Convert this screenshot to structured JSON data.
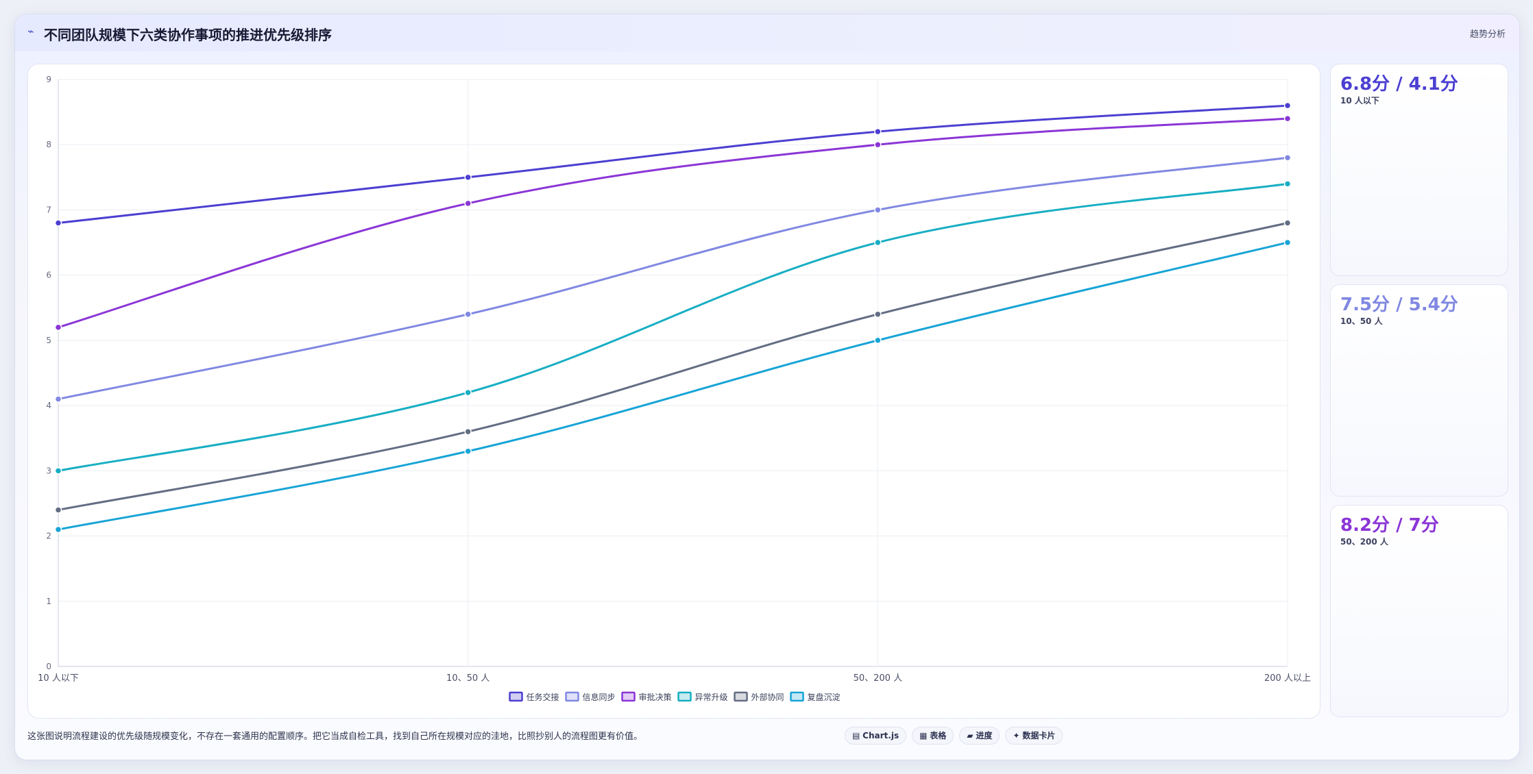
{
  "header": {
    "icon": "trend-line-icon",
    "icon_glyph": "⌁",
    "title": "不同团队规模下六类协作事项的推进优先级排序",
    "tab_label": "趋势分析"
  },
  "chart_data": {
    "type": "line",
    "title": "",
    "xlabel": "",
    "ylabel": "",
    "categories": [
      "10 人以下",
      "10、50 人",
      "50、200 人",
      "200 人以上"
    ],
    "ylim": [
      0,
      9
    ],
    "yticks": [
      0,
      1,
      2,
      3,
      4,
      5,
      6,
      7,
      8,
      9
    ],
    "grid": true,
    "legend_position": "bottom",
    "series": [
      {
        "name": "任务交接",
        "color": "#4c3fd1",
        "values": [
          6.8,
          7.5,
          8.2,
          8.6
        ]
      },
      {
        "name": "信息同步",
        "color": "#8088e2",
        "values": [
          4.1,
          5.4,
          7.0,
          7.8
        ]
      },
      {
        "name": "审批决策",
        "color": "#8b35d6",
        "values": [
          5.2,
          7.1,
          8.0,
          8.4
        ]
      },
      {
        "name": "异常升级",
        "color": "#17aec3",
        "values": [
          3.0,
          4.2,
          6.5,
          7.4
        ]
      },
      {
        "name": "外部协同",
        "color": "#636d83",
        "values": [
          2.4,
          3.6,
          5.4,
          6.8
        ]
      },
      {
        "name": "复盘沉淀",
        "color": "#17a4d6",
        "values": [
          2.1,
          3.3,
          5.0,
          6.5
        ]
      }
    ]
  },
  "side_cards": [
    {
      "value": "6.8分 / 4.1分",
      "label": "10 人以下",
      "color": "#4c3fd1"
    },
    {
      "value": "7.5分 / 5.4分",
      "label": "10、50 人",
      "color": "#8088e2"
    },
    {
      "value": "8.2分 / 7分",
      "label": "50、200 人",
      "color": "#8b35d6"
    }
  ],
  "footer": {
    "note": "这张图说明流程建设的优先级随规模变化，不存在一套通用的配置顺序。把它当成自检工具，找到自己所在规模对应的洼地，比照抄别人的流程图更有价值。",
    "pills": [
      {
        "icon": "chart-icon",
        "glyph": "▤",
        "label": "Chart.js",
        "bold": true
      },
      {
        "icon": "table-icon",
        "glyph": "▦",
        "label": "表格",
        "bold": false
      },
      {
        "icon": "progress-icon",
        "glyph": "▰",
        "label": "进度",
        "bold": false
      },
      {
        "icon": "card-icon",
        "glyph": "✦",
        "label": "数据卡片",
        "bold": false
      }
    ]
  }
}
